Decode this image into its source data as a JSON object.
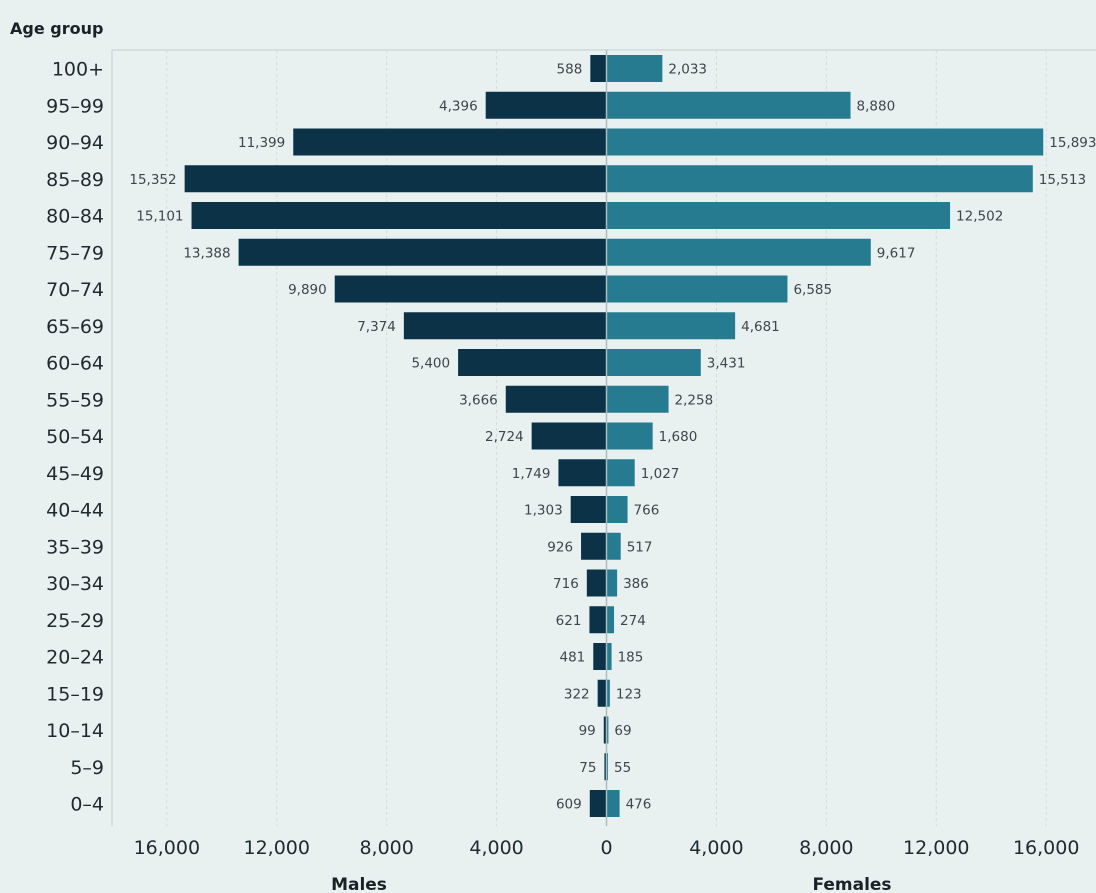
{
  "chart_data": {
    "type": "bar",
    "orientation": "horizontal",
    "layout": "population-pyramid",
    "y_title": "Age group",
    "categories": [
      "100+",
      "95–99",
      "90–94",
      "85–89",
      "80–84",
      "75–79",
      "70–74",
      "65–69",
      "60–64",
      "55–59",
      "50–54",
      "45–49",
      "40–44",
      "35–39",
      "30–34",
      "25–29",
      "20–24",
      "15–19",
      "10–14",
      "5–9",
      "0–4"
    ],
    "series": [
      {
        "name": "Males",
        "side": "left",
        "color": "#0b3247",
        "values": [
          588,
          4396,
          11399,
          15352,
          15101,
          13388,
          9890,
          7374,
          5400,
          3666,
          2724,
          1749,
          1303,
          926,
          716,
          621,
          481,
          322,
          99,
          75,
          609
        ],
        "labels": [
          "588",
          "4,396",
          "11,399",
          "15,352",
          "15,101",
          "13,388",
          "9,890",
          "7,374",
          "5,400",
          "3,666",
          "2,724",
          "1,749",
          "1,303",
          "926",
          "716",
          "621",
          "481",
          "322",
          "99",
          "75",
          "609"
        ]
      },
      {
        "name": "Females",
        "side": "right",
        "color": "#277b91",
        "values": [
          2033,
          8880,
          15893,
          15513,
          12502,
          9617,
          6585,
          4681,
          3431,
          2258,
          1680,
          1027,
          766,
          517,
          386,
          274,
          185,
          123,
          69,
          55,
          476
        ],
        "labels": [
          "2,033",
          "8,880",
          "15,893",
          "15,513",
          "12,502",
          "9,617",
          "6,585",
          "4,681",
          "3,431",
          "2,258",
          "1,680",
          "1,027",
          "766",
          "517",
          "386",
          "274",
          "185",
          "123",
          "69",
          "55",
          "476"
        ]
      }
    ],
    "x_ticks": [
      16000,
      12000,
      8000,
      4000,
      0,
      4000,
      8000,
      12000,
      16000
    ],
    "x_tick_labels": [
      "16,000",
      "12,000",
      "8,000",
      "4,000",
      "0",
      "4,000",
      "8,000",
      "12,000",
      "16,000"
    ],
    "xlim": [
      -16000,
      16000
    ],
    "grid": true,
    "background": "#e9f1f0"
  }
}
